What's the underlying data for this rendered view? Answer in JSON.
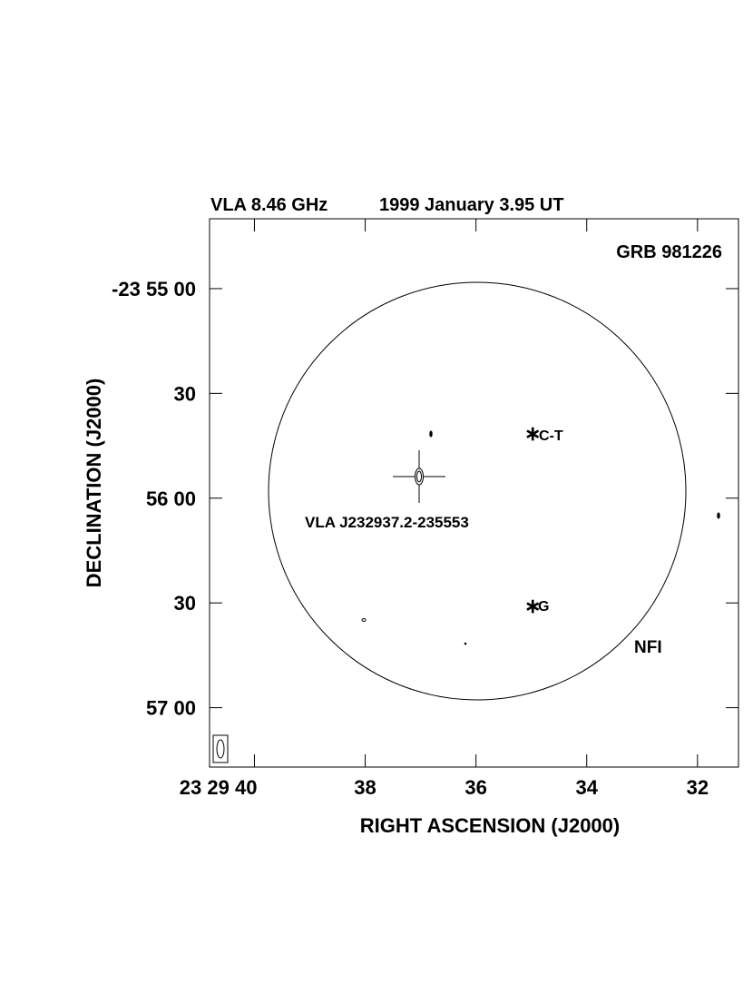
{
  "chart_data": {
    "type": "contour",
    "title": "VLA 8.46 GHz",
    "subtitle": "1999 January 3.95 UT",
    "x_label": "RIGHT ASCENSION (J2000)",
    "y_label": "DECLINATION (J2000)",
    "xlim": [
      40.81,
      31.26
    ],
    "xticks": [
      {
        "value": 40,
        "label": "23 29 40"
      },
      38,
      36,
      34,
      32
    ],
    "ylim": [
      -86237,
      -86080
    ],
    "yticks": [
      {
        "value": -86100,
        "label": "-23 55 00"
      },
      {
        "value": -86130,
        "label": "30"
      },
      {
        "value": -86160,
        "label": "56 00"
      },
      {
        "value": -86190,
        "label": "30"
      },
      {
        "value": -86220,
        "label": "57 00"
      }
    ],
    "annotations": [
      "GRB 981226",
      "C-T",
      "G",
      "VLA J232937.2-235553",
      "NFI"
    ]
  }
}
